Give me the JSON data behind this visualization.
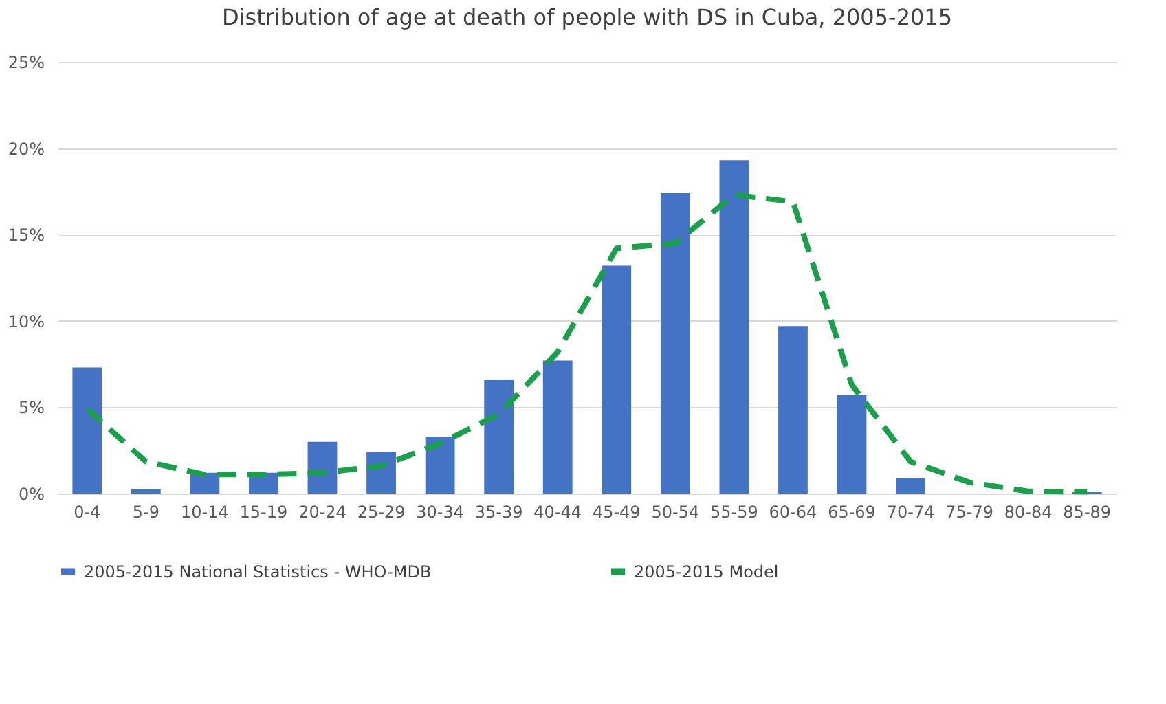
{
  "chart_data": {
    "type": "bar",
    "title": "Distribution of age at death of people with DS in Cuba, 2005-2015",
    "categories": [
      "0-4",
      "5-9",
      "10-14",
      "15-19",
      "20-24",
      "25-29",
      "30-34",
      "35-39",
      "40-44",
      "45-49",
      "50-54",
      "55-59",
      "60-64",
      "65-69",
      "70-74",
      "75-79",
      "80-84",
      "85-89"
    ],
    "series": [
      {
        "name": "2005-2015 National Statistics - WHO-MDB",
        "color": "#4472c4",
        "values": [
          7.3,
          0.26,
          1.2,
          1.2,
          3.0,
          2.4,
          3.3,
          6.6,
          7.7,
          13.2,
          17.4,
          19.3,
          9.7,
          5.7,
          0.9,
          0,
          0,
          0.1
        ]
      },
      {
        "name": "2005-2015 Model",
        "type": "line",
        "color": "#1aa04a",
        "line_style": "dashed",
        "values": [
          4.9,
          1.85,
          1.1,
          1.1,
          1.2,
          1.6,
          2.9,
          4.6,
          8.2,
          14.2,
          14.5,
          17.3,
          16.9,
          6.3,
          1.85,
          0.65,
          0.13,
          0.1
        ]
      }
    ],
    "ylim": [
      0,
      25
    ],
    "yticks": [
      {
        "value": 0,
        "label": "0%"
      },
      {
        "value": 5,
        "label": "5%"
      },
      {
        "value": 10,
        "label": "10%"
      },
      {
        "value": 15,
        "label": "15%"
      },
      {
        "value": 20,
        "label": "20%"
      },
      {
        "value": 25,
        "label": "25%"
      }
    ],
    "grid": "y",
    "legend": "bottom"
  }
}
